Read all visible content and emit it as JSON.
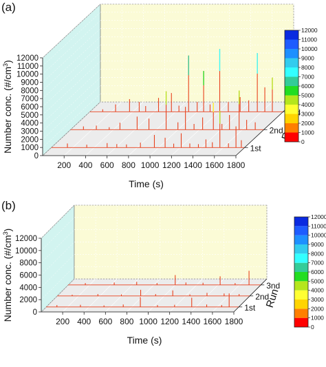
{
  "colors": {
    "back_wall": "#fbfbd6",
    "side_wall": "#d2f4f0",
    "floor": "#ececec",
    "spike": "#e8401c",
    "frame": "#6e6e6e",
    "colorbar": [
      "#ff0000",
      "#ff7f00",
      "#ffd400",
      "#ffff33",
      "#b5e61d",
      "#22dd22",
      "#33cc99",
      "#33ffff",
      "#33ccee",
      "#1e90ff",
      "#1e5cff",
      "#0a2ae0"
    ]
  },
  "chart_data": [
    {
      "panel_label": "(a)",
      "type": "3d-waterfall",
      "xlabel": "Time (s)",
      "ylabel": "Number conc. (#/cm³)",
      "ylabel_main": "Number conc. (#/cm",
      "ylabel_sup": "3",
      "ylabel_end": ")",
      "zlabel": "Run",
      "x_ticks": [
        "200",
        "400",
        "600",
        "800",
        "1000",
        "1200",
        "1400",
        "1600",
        "1800"
      ],
      "x_tick_values": [
        200,
        400,
        600,
        800,
        1000,
        1200,
        1400,
        1600,
        1800
      ],
      "xlim": [
        0,
        1800
      ],
      "y_ticks": [
        "0",
        "1000",
        "2000",
        "3000",
        "4000",
        "5000",
        "6000",
        "7000",
        "8000",
        "9000",
        "10000",
        "11000",
        "12000"
      ],
      "y_tick_values": [
        0,
        1000,
        2000,
        3000,
        4000,
        5000,
        6000,
        7000,
        8000,
        9000,
        10000,
        11000,
        12000
      ],
      "ylim": [
        0,
        12000
      ],
      "runs": [
        "1st",
        "2nd",
        "3rd"
      ],
      "colorbar_ticks": [
        "0",
        "1000",
        "2000",
        "3000",
        "4000",
        "5000",
        "6000",
        "7000",
        "8000",
        "9000",
        "10000",
        "11000",
        "12000"
      ],
      "series": [
        {
          "name": "1st",
          "peaks": [
            [
              150,
              500
            ],
            [
              330,
              350
            ],
            [
              520,
              550
            ],
            [
              610,
              420
            ],
            [
              700,
              380
            ],
            [
              830,
              600
            ],
            [
              960,
              1550
            ],
            [
              1060,
              1200
            ],
            [
              1140,
              480
            ],
            [
              1210,
              1750
            ],
            [
              1290,
              500
            ],
            [
              1370,
              420
            ],
            [
              1440,
              1000
            ],
            [
              1500,
              650
            ],
            [
              1570,
              4500
            ],
            [
              1650,
              520
            ],
            [
              1720,
              2600
            ],
            [
              1770,
              900
            ]
          ]
        },
        {
          "name": "2nd",
          "peaks": [
            [
              120,
              400
            ],
            [
              240,
              500
            ],
            [
              360,
              300
            ],
            [
              460,
              850
            ],
            [
              620,
              1600
            ],
            [
              730,
              1350
            ],
            [
              890,
              4700
            ],
            [
              1000,
              900
            ],
            [
              1070,
              2800
            ],
            [
              1150,
              700
            ],
            [
              1230,
              1500
            ],
            [
              1330,
              3300
            ],
            [
              1410,
              700
            ],
            [
              1480,
              1800
            ],
            [
              1570,
              4800
            ],
            [
              1640,
              1200
            ],
            [
              1720,
              900
            ]
          ]
        },
        {
          "name": "3rd",
          "peaks": [
            [
              120,
              300
            ],
            [
              240,
              900
            ],
            [
              370,
              1550
            ],
            [
              460,
              1200
            ],
            [
              520,
              700
            ],
            [
              640,
              1700
            ],
            [
              760,
              2300
            ],
            [
              830,
              750
            ],
            [
              920,
              6900
            ],
            [
              1000,
              1200
            ],
            [
              1060,
              5000
            ],
            [
              1120,
              900
            ],
            [
              1210,
              7700
            ],
            [
              1290,
              1200
            ],
            [
              1400,
              1800
            ],
            [
              1480,
              1400
            ],
            [
              1560,
              7200
            ],
            [
              1630,
              3000
            ],
            [
              1700,
              4200
            ]
          ]
        }
      ]
    },
    {
      "panel_label": "(b)",
      "type": "3d-waterfall",
      "xlabel": "Time (s)",
      "ylabel": "Number conc. (#/cm³)",
      "ylabel_main": "Number conc. (#/cm",
      "ylabel_sup": "3",
      "ylabel_end": ")",
      "zlabel": "Run",
      "x_ticks": [
        "200",
        "400",
        "600",
        "800",
        "1000",
        "1200",
        "1400",
        "1600",
        "1800"
      ],
      "x_tick_values": [
        200,
        400,
        600,
        800,
        1000,
        1200,
        1400,
        1600,
        1800
      ],
      "xlim": [
        0,
        1800
      ],
      "y_ticks": [
        "0",
        "2000",
        "4000",
        "6000",
        "8000",
        "10000",
        "12000"
      ],
      "y_tick_values": [
        0,
        2000,
        4000,
        6000,
        8000,
        10000,
        12000
      ],
      "ylim": [
        0,
        12000
      ],
      "runs": [
        "1st",
        "2nd",
        "3nd"
      ],
      "colorbar_ticks": [
        "0",
        "1000",
        "2000",
        "3000",
        "4000",
        "5000",
        "6000",
        "7000",
        "8000",
        "9000",
        "10000",
        "11000",
        "12000"
      ],
      "series": [
        {
          "name": "1st",
          "peaks": [
            [
              100,
              300
            ],
            [
              320,
              350
            ],
            [
              540,
              250
            ],
            [
              720,
              400
            ],
            [
              880,
              1600
            ],
            [
              1040,
              300
            ],
            [
              1200,
              350
            ],
            [
              1360,
              1500
            ],
            [
              1500,
              400
            ],
            [
              1640,
              300
            ],
            [
              1710,
              2200
            ]
          ]
        },
        {
          "name": "2nd",
          "peaks": [
            [
              140,
              200
            ],
            [
              380,
              300
            ],
            [
              600,
              250
            ],
            [
              780,
              1000
            ],
            [
              920,
              300
            ],
            [
              1080,
              900
            ],
            [
              1240,
              250
            ],
            [
              1400,
              500
            ],
            [
              1560,
              400
            ],
            [
              1700,
              300
            ]
          ]
        },
        {
          "name": "3nd",
          "peaks": [
            [
              160,
              300
            ],
            [
              430,
              400
            ],
            [
              640,
              500
            ],
            [
              830,
              300
            ],
            [
              1000,
              1600
            ],
            [
              1100,
              400
            ],
            [
              1260,
              350
            ],
            [
              1420,
              1400
            ],
            [
              1560,
              300
            ],
            [
              1690,
              2300
            ]
          ]
        }
      ]
    }
  ]
}
